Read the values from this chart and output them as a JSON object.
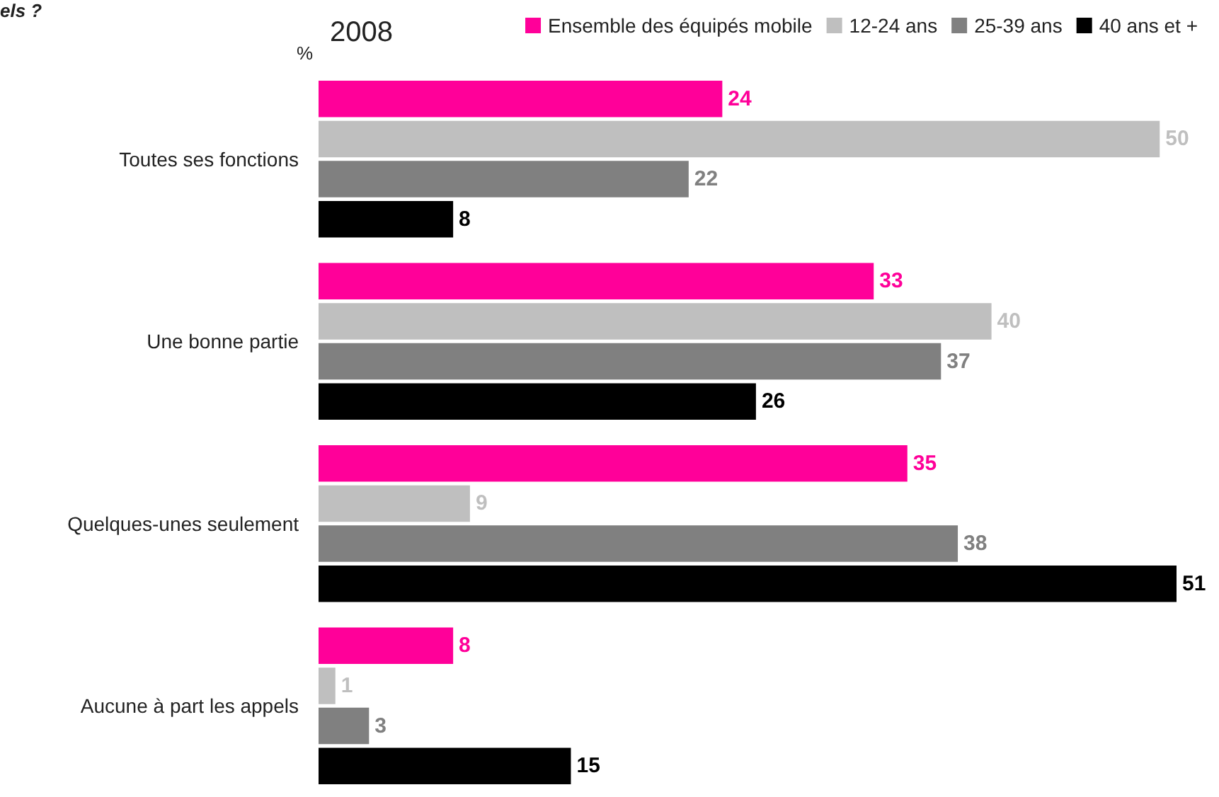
{
  "chart_data": {
    "type": "bar",
    "orientation": "horizontal",
    "title": "2008",
    "ylabel": "%",
    "annotations": [
      "els ?"
    ],
    "categories": [
      "Toutes ses fonctions",
      "Une bonne partie",
      "Quelques-unes seulement",
      "Aucune à part les appels"
    ],
    "series": [
      {
        "name": "Ensemble des équipés mobile",
        "color": "#ff0099",
        "values": [
          24,
          33,
          35,
          8
        ]
      },
      {
        "name": "12-24 ans",
        "color": "#bfbfbf",
        "values": [
          50,
          40,
          9,
          1
        ]
      },
      {
        "name": "25-39 ans",
        "color": "#808080",
        "values": [
          22,
          37,
          38,
          3
        ]
      },
      {
        "name": "40 ans et +",
        "color": "#000000",
        "values": [
          8,
          26,
          51,
          15
        ]
      }
    ],
    "data_labels": true,
    "legend": "top right",
    "grid": false
  }
}
